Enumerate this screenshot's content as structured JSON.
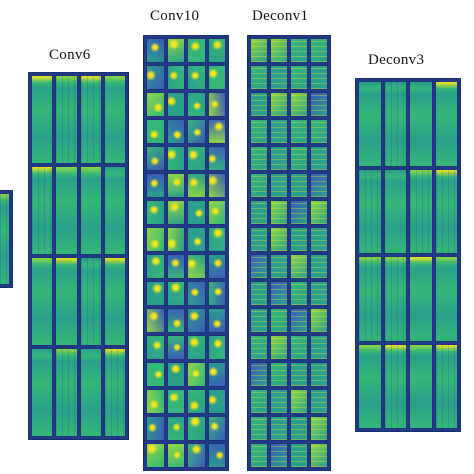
{
  "panels": [
    {
      "id": "partial-left",
      "label": "",
      "cols": 1,
      "rows": 1,
      "style": "tall"
    },
    {
      "id": "conv6",
      "label": "Conv6",
      "cols": 4,
      "rows": 4,
      "style": "tall"
    },
    {
      "id": "conv10",
      "label": "Conv10",
      "cols": 4,
      "rows": 16,
      "style": "block"
    },
    {
      "id": "deconv1",
      "label": "Deconv1",
      "cols": 4,
      "rows": 16,
      "style": "sparse"
    },
    {
      "id": "deconv3",
      "label": "Deconv3",
      "cols": 4,
      "rows": 4,
      "style": "tall"
    }
  ],
  "colors": {
    "background": "#ffffff",
    "dark": "#23307a",
    "teal": "#2aa08a",
    "green": "#35b779",
    "lime": "#8fd744",
    "yellow": "#f4e61e",
    "blue": "#3b5cb8"
  }
}
